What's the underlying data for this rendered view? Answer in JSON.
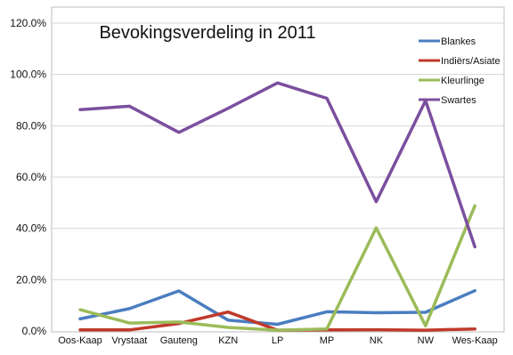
{
  "chart_data": {
    "type": "line",
    "title": "Bevokingsverdeling in 2011",
    "xlabel": "",
    "ylabel": "",
    "ylim": [
      0,
      120
    ],
    "yticks": [
      "0.0%",
      "20.0%",
      "40.0%",
      "60.0%",
      "80.0%",
      "100.0%",
      "120.0%"
    ],
    "grid": true,
    "legend_position": "top-right",
    "categories": [
      "Oos-Kaap",
      "Vrystaat",
      "Gauteng",
      "KZN",
      "LP",
      "MP",
      "NK",
      "NW",
      "Wes-Kaap"
    ],
    "series": [
      {
        "name": "Blankes",
        "color": "#4a7ebf",
        "values": [
          4.7,
          8.7,
          15.6,
          4.2,
          2.6,
          7.5,
          7.1,
          7.3,
          15.7
        ]
      },
      {
        "name": "Indiërs/Asiate",
        "color": "#c0392b",
        "values": [
          0.4,
          0.4,
          2.9,
          7.4,
          0.3,
          0.4,
          0.5,
          0.3,
          0.8
        ]
      },
      {
        "name": "Kleurlinge",
        "color": "#9bbb59",
        "values": [
          8.3,
          3.1,
          3.5,
          1.4,
          0.3,
          0.8,
          40.2,
          2.0,
          48.8
        ]
      },
      {
        "name": "Swartes",
        "color": "#7b4f9e",
        "values": [
          86.3,
          87.6,
          77.4,
          86.8,
          96.7,
          90.7,
          50.4,
          89.8,
          32.8
        ]
      }
    ]
  }
}
